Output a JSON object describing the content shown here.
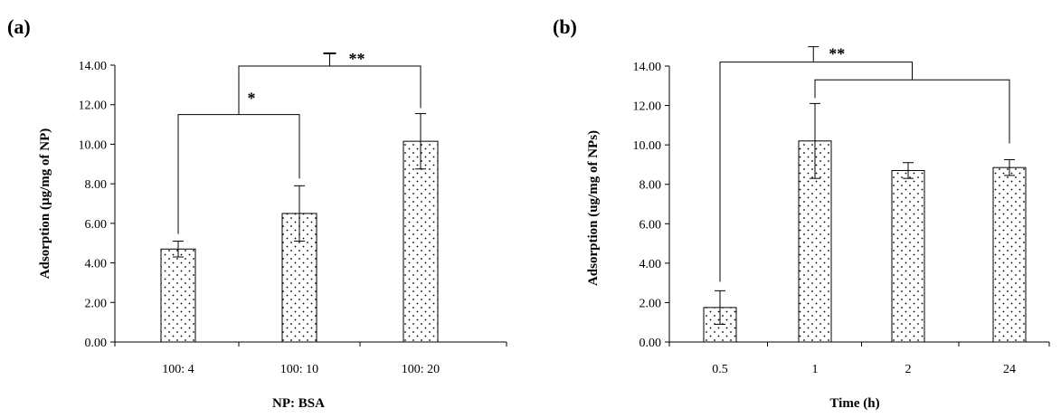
{
  "chart_data": [
    {
      "panel_label": "(a)",
      "type": "bar",
      "categories": [
        "100: 4",
        "100: 10",
        "100: 20"
      ],
      "values": [
        4.7,
        6.5,
        10.15
      ],
      "errors": [
        0.4,
        1.4,
        1.4
      ],
      "xlabel": "NP: BSA",
      "ylabel": "Adsorption  (µg/mg of NP)",
      "ylim": [
        0,
        14
      ],
      "ytick_values": [
        0,
        2,
        4,
        6,
        8,
        10,
        12,
        14
      ],
      "ytick_labels": [
        "0.00",
        "2.00",
        "4.00",
        "6.00",
        "8.00",
        "10.00",
        "12.00",
        "14.00"
      ],
      "pattern": "dotted",
      "significance": [
        {
          "label": "*",
          "from": 0,
          "to": 1,
          "y": 11.5
        },
        {
          "label": "**",
          "from_bracket": 0,
          "to": 2,
          "y": 14.0
        }
      ]
    },
    {
      "panel_label": "(b)",
      "type": "bar",
      "categories": [
        "0.5",
        "1",
        "2",
        "24"
      ],
      "values": [
        1.75,
        10.2,
        8.7,
        8.85
      ],
      "errors": [
        0.85,
        1.9,
        0.4,
        0.4
      ],
      "xlabel": "Time (h)",
      "ylabel": "Adsorption  (ug/mg of NPs)",
      "ylim": [
        0,
        14
      ],
      "ytick_values": [
        0,
        2,
        4,
        6,
        8,
        10,
        12,
        14
      ],
      "ytick_labels": [
        "0.00",
        "2.00",
        "4.00",
        "6.00",
        "8.00",
        "10.00",
        "12.00",
        "14.00"
      ],
      "pattern": "dotted",
      "significance": [
        {
          "label": "**",
          "from": 0,
          "to_bracket": [
            1,
            3
          ],
          "y": 14.2
        }
      ]
    }
  ]
}
